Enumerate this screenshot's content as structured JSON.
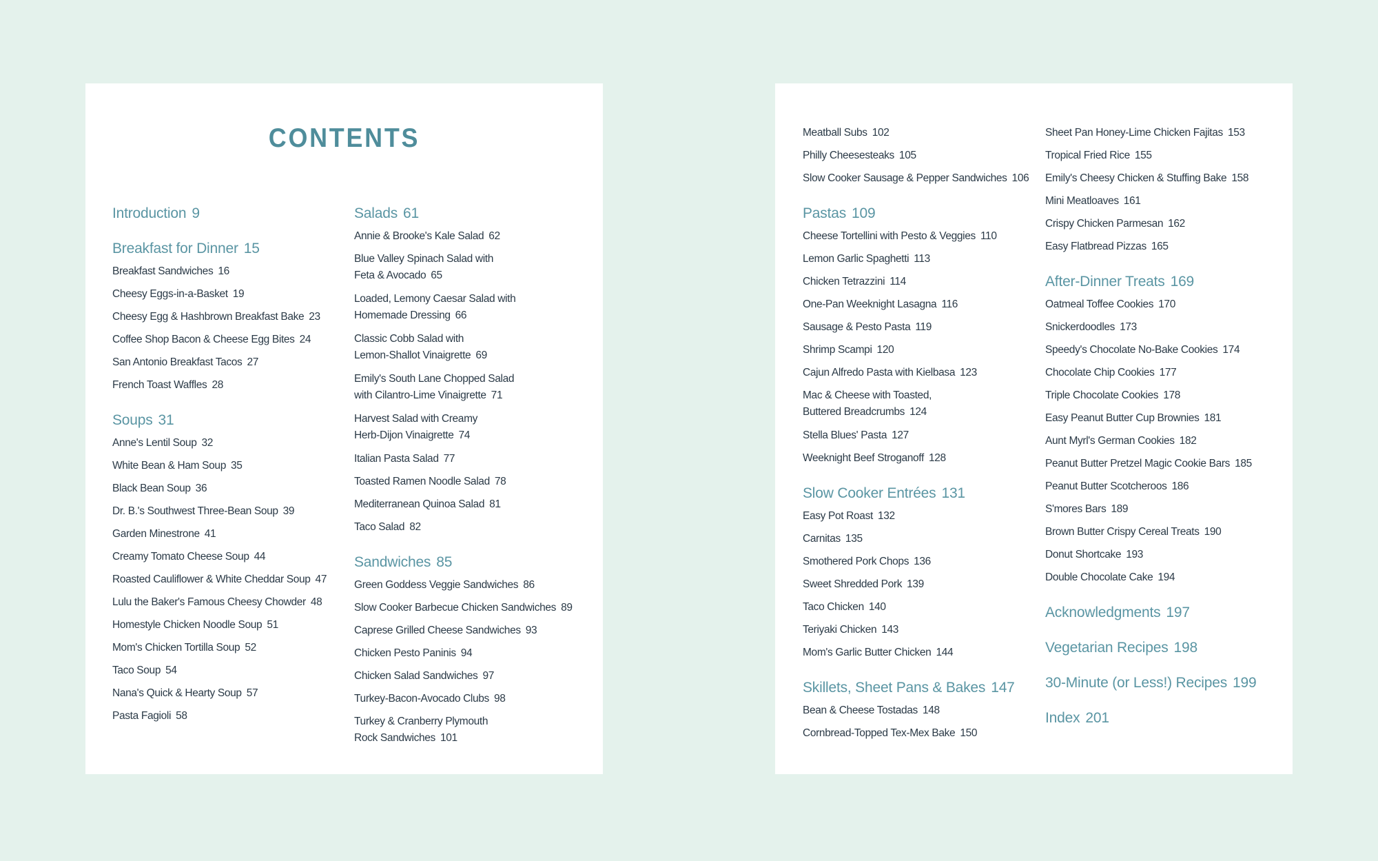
{
  "title": "CONTENTS",
  "colors": {
    "background": "#e4f2ec",
    "heading": "#5a95a3",
    "title": "#4f8d9b",
    "text": "#2b3a47"
  },
  "pages": [
    {
      "columns": [
        [
          {
            "heading": true,
            "lines": [
              "Introduction"
            ],
            "page": "9"
          },
          {
            "heading": true,
            "lines": [
              "Breakfast for Dinner"
            ],
            "page": "15"
          },
          {
            "lines": [
              "Breakfast Sandwiches"
            ],
            "page": "16"
          },
          {
            "lines": [
              "Cheesy Eggs-in-a-Basket"
            ],
            "page": "19"
          },
          {
            "lines": [
              "Cheesy Egg & Hashbrown Breakfast Bake"
            ],
            "page": "23"
          },
          {
            "lines": [
              "Coffee Shop Bacon & Cheese Egg Bites"
            ],
            "page": "24"
          },
          {
            "lines": [
              "San Antonio Breakfast Tacos"
            ],
            "page": "27"
          },
          {
            "lines": [
              "French Toast Waffles"
            ],
            "page": "28"
          },
          {
            "heading": true,
            "lines": [
              "Soups"
            ],
            "page": "31"
          },
          {
            "lines": [
              "Anne's Lentil Soup"
            ],
            "page": "32"
          },
          {
            "lines": [
              "White Bean & Ham Soup"
            ],
            "page": "35"
          },
          {
            "lines": [
              "Black Bean Soup"
            ],
            "page": "36"
          },
          {
            "lines": [
              "Dr. B.'s Southwest Three-Bean Soup"
            ],
            "page": "39"
          },
          {
            "lines": [
              "Garden Minestrone"
            ],
            "page": "41"
          },
          {
            "lines": [
              "Creamy Tomato Cheese Soup"
            ],
            "page": "44"
          },
          {
            "lines": [
              "Roasted Cauliflower & White Cheddar Soup"
            ],
            "page": "47"
          },
          {
            "lines": [
              "Lulu the Baker's Famous Cheesy Chowder"
            ],
            "page": "48"
          },
          {
            "lines": [
              "Homestyle Chicken Noodle Soup"
            ],
            "page": "51"
          },
          {
            "lines": [
              "Mom's Chicken Tortilla Soup"
            ],
            "page": "52"
          },
          {
            "lines": [
              "Taco Soup"
            ],
            "page": "54"
          },
          {
            "lines": [
              "Nana's Quick & Hearty Soup"
            ],
            "page": "57"
          },
          {
            "lines": [
              "Pasta Fagioli"
            ],
            "page": "58"
          }
        ],
        [
          {
            "heading": true,
            "lines": [
              "Salads"
            ],
            "page": "61"
          },
          {
            "lines": [
              "Annie & Brooke's Kale Salad"
            ],
            "page": "62"
          },
          {
            "lines": [
              "Blue Valley Spinach Salad with",
              "Feta & Avocado"
            ],
            "page": "65"
          },
          {
            "lines": [
              "Loaded, Lemony Caesar Salad with",
              "Homemade Dressing"
            ],
            "page": "66"
          },
          {
            "lines": [
              "Classic Cobb Salad with",
              "Lemon-Shallot Vinaigrette"
            ],
            "page": "69"
          },
          {
            "lines": [
              "Emily's South Lane Chopped Salad",
              "with Cilantro-Lime Vinaigrette"
            ],
            "page": "71"
          },
          {
            "lines": [
              "Harvest Salad with Creamy",
              "Herb-Dijon Vinaigrette"
            ],
            "page": "74"
          },
          {
            "lines": [
              "Italian Pasta Salad"
            ],
            "page": "77"
          },
          {
            "lines": [
              "Toasted Ramen Noodle Salad"
            ],
            "page": "78"
          },
          {
            "lines": [
              "Mediterranean Quinoa Salad"
            ],
            "page": "81"
          },
          {
            "lines": [
              "Taco Salad"
            ],
            "page": "82"
          },
          {
            "heading": true,
            "lines": [
              "Sandwiches"
            ],
            "page": "85"
          },
          {
            "lines": [
              "Green Goddess Veggie Sandwiches"
            ],
            "page": "86"
          },
          {
            "lines": [
              "Slow Cooker Barbecue Chicken Sandwiches"
            ],
            "page": "89"
          },
          {
            "lines": [
              "Caprese Grilled Cheese Sandwiches"
            ],
            "page": "93"
          },
          {
            "lines": [
              "Chicken Pesto Paninis"
            ],
            "page": "94"
          },
          {
            "lines": [
              "Chicken Salad Sandwiches"
            ],
            "page": "97"
          },
          {
            "lines": [
              "Turkey-Bacon-Avocado Clubs"
            ],
            "page": "98"
          },
          {
            "lines": [
              "Turkey & Cranberry Plymouth",
              "Rock Sandwiches"
            ],
            "page": "101"
          }
        ]
      ]
    },
    {
      "columns": [
        [
          {
            "lines": [
              "Meatball Subs"
            ],
            "page": "102"
          },
          {
            "lines": [
              "Philly Cheesesteaks"
            ],
            "page": "105"
          },
          {
            "lines": [
              "Slow Cooker Sausage & Pepper Sandwiches"
            ],
            "page": "106"
          },
          {
            "heading": true,
            "lines": [
              "Pastas"
            ],
            "page": "109"
          },
          {
            "lines": [
              "Cheese Tortellini with Pesto & Veggies"
            ],
            "page": "110"
          },
          {
            "lines": [
              "Lemon Garlic Spaghetti"
            ],
            "page": "113"
          },
          {
            "lines": [
              "Chicken Tetrazzini"
            ],
            "page": "114"
          },
          {
            "lines": [
              "One-Pan Weeknight Lasagna"
            ],
            "page": "116"
          },
          {
            "lines": [
              "Sausage & Pesto Pasta"
            ],
            "page": "119"
          },
          {
            "lines": [
              "Shrimp Scampi"
            ],
            "page": "120"
          },
          {
            "lines": [
              "Cajun Alfredo Pasta with Kielbasa"
            ],
            "page": "123"
          },
          {
            "lines": [
              "Mac & Cheese with Toasted,",
              "Buttered Breadcrumbs"
            ],
            "page": "124"
          },
          {
            "lines": [
              "Stella Blues' Pasta"
            ],
            "page": "127"
          },
          {
            "lines": [
              "Weeknight Beef Stroganoff"
            ],
            "page": "128"
          },
          {
            "heading": true,
            "lines": [
              "Slow Cooker Entrées"
            ],
            "page": "131"
          },
          {
            "lines": [
              "Easy Pot Roast"
            ],
            "page": "132"
          },
          {
            "lines": [
              "Carnitas"
            ],
            "page": "135"
          },
          {
            "lines": [
              "Smothered Pork Chops"
            ],
            "page": "136"
          },
          {
            "lines": [
              "Sweet Shredded Pork"
            ],
            "page": "139"
          },
          {
            "lines": [
              "Taco Chicken"
            ],
            "page": "140"
          },
          {
            "lines": [
              "Teriyaki Chicken"
            ],
            "page": "143"
          },
          {
            "lines": [
              "Mom's Garlic Butter Chicken"
            ],
            "page": "144"
          },
          {
            "heading": true,
            "lines": [
              "Skillets, Sheet Pans & Bakes"
            ],
            "page": "147"
          },
          {
            "lines": [
              "Bean & Cheese Tostadas"
            ],
            "page": "148"
          },
          {
            "lines": [
              "Cornbread-Topped Tex-Mex Bake"
            ],
            "page": "150"
          }
        ],
        [
          {
            "lines": [
              "Sheet Pan Honey-Lime Chicken Fajitas"
            ],
            "page": "153"
          },
          {
            "lines": [
              "Tropical Fried Rice"
            ],
            "page": "155"
          },
          {
            "lines": [
              "Emily's Cheesy Chicken & Stuffing Bake"
            ],
            "page": "158"
          },
          {
            "lines": [
              "Mini Meatloaves"
            ],
            "page": "161"
          },
          {
            "lines": [
              "Crispy Chicken Parmesan"
            ],
            "page": "162"
          },
          {
            "lines": [
              "Easy Flatbread Pizzas"
            ],
            "page": "165"
          },
          {
            "heading": true,
            "lines": [
              "After-Dinner Treats"
            ],
            "page": "169"
          },
          {
            "lines": [
              "Oatmeal Toffee Cookies"
            ],
            "page": "170"
          },
          {
            "lines": [
              "Snickerdoodles"
            ],
            "page": "173"
          },
          {
            "lines": [
              "Speedy's Chocolate No-Bake Cookies"
            ],
            "page": "174"
          },
          {
            "lines": [
              "Chocolate Chip Cookies"
            ],
            "page": "177"
          },
          {
            "lines": [
              "Triple Chocolate Cookies"
            ],
            "page": "178"
          },
          {
            "lines": [
              "Easy Peanut Butter Cup Brownies"
            ],
            "page": "181"
          },
          {
            "lines": [
              "Aunt Myrl's German Cookies"
            ],
            "page": "182"
          },
          {
            "lines": [
              "Peanut Butter Pretzel Magic Cookie Bars"
            ],
            "page": "185"
          },
          {
            "lines": [
              "Peanut Butter Scotcheroos"
            ],
            "page": "186"
          },
          {
            "lines": [
              "S'mores Bars"
            ],
            "page": "189"
          },
          {
            "lines": [
              "Brown Butter Crispy Cereal Treats"
            ],
            "page": "190"
          },
          {
            "lines": [
              "Donut Shortcake"
            ],
            "page": "193"
          },
          {
            "lines": [
              "Double Chocolate Cake"
            ],
            "page": "194"
          },
          {
            "heading": true,
            "lines": [
              "Acknowledgments"
            ],
            "page": "197"
          },
          {
            "heading": true,
            "lines": [
              "Vegetarian Recipes"
            ],
            "page": "198"
          },
          {
            "heading": true,
            "lines": [
              "30-Minute (or Less!) Recipes"
            ],
            "page": "199"
          },
          {
            "heading": true,
            "lines": [
              "Index"
            ],
            "page": "201"
          }
        ]
      ]
    }
  ]
}
